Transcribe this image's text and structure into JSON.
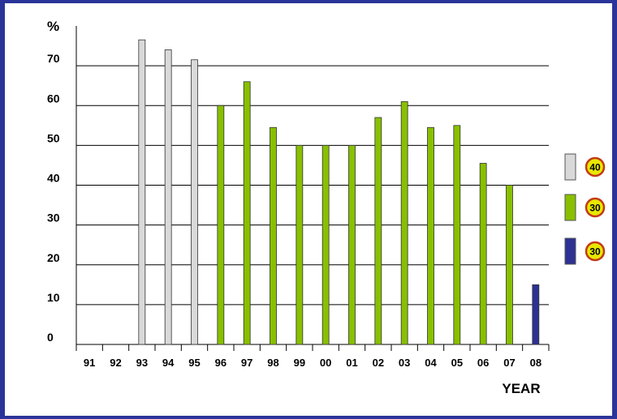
{
  "chart_data": {
    "type": "bar",
    "title": "",
    "ylabel": "%",
    "xlabel": "YEAR",
    "ylim": [
      0,
      80
    ],
    "yticks": [
      0,
      10,
      20,
      30,
      40,
      50,
      60,
      70
    ],
    "grid": true,
    "categories": [
      "91",
      "92",
      "93",
      "94",
      "95",
      "96",
      "97",
      "98",
      "99",
      "00",
      "01",
      "02",
      "03",
      "04",
      "05",
      "06",
      "07",
      "08"
    ],
    "values": [
      null,
      null,
      76.5,
      74,
      71.5,
      60,
      66,
      54.5,
      50,
      50,
      50,
      57,
      61,
      54.5,
      55,
      45.5,
      40,
      15
    ],
    "bar_colors": [
      null,
      null,
      "#d9d9d9",
      "#d9d9d9",
      "#d9d9d9",
      "#88c000",
      "#88c000",
      "#88c000",
      "#88c000",
      "#88c000",
      "#88c000",
      "#88c000",
      "#88c000",
      "#88c000",
      "#88c000",
      "#88c000",
      "#88c000",
      "#2d3193"
    ],
    "legend": [
      {
        "color": "#d9d9d9",
        "badge": "40"
      },
      {
        "color": "#88c000",
        "badge": "30"
      },
      {
        "color": "#2d3193",
        "badge": "30"
      }
    ],
    "legend_placement": "right"
  }
}
